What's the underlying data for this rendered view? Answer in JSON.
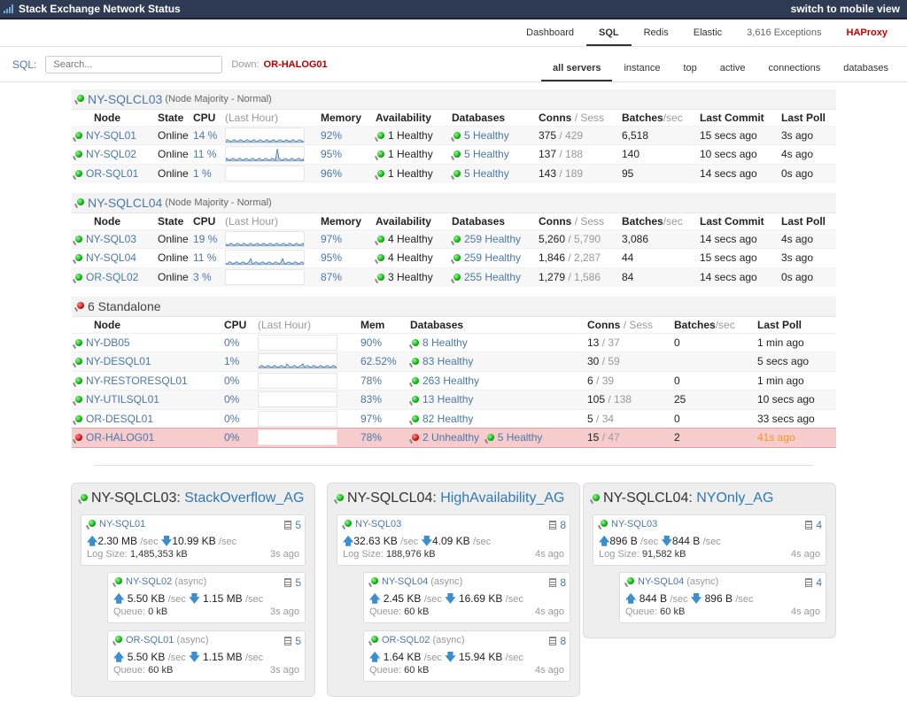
{
  "app": {
    "title": "Stack Exchange Network Status",
    "switch": "switch to mobile view"
  },
  "nav": [
    "Dashboard",
    "SQL",
    "Redis",
    "Elastic",
    "3,616 Exceptions",
    "HAProxy"
  ],
  "sql": {
    "label": "SQL:",
    "placeholder": "Search...",
    "down_label": "Down:",
    "down_value": "OR-HALOG01"
  },
  "tabs": [
    "all servers",
    "instance",
    "top",
    "active",
    "connections",
    "databases"
  ],
  "cluster_headers": [
    "Node",
    "State",
    "CPU",
    "(Last Hour)",
    "Memory",
    "Availability",
    "Databases",
    "Conns",
    "/ Sess",
    "Batches",
    "/sec",
    "Last Commit",
    "Last Poll"
  ],
  "clusters": [
    {
      "name": "NY-SQLCL03",
      "sub": "(Node Majority - Normal)",
      "rows": [
        {
          "node": "NY-SQL01",
          "state": "Online",
          "cpu": "14 %",
          "mem": "92%",
          "avail": "1 Healthy",
          "dbs": "5 Healthy",
          "conns": "375",
          "sess": "/ 429",
          "batches": "6,518",
          "commit": "15 secs ago",
          "poll": "3s ago"
        },
        {
          "node": "NY-SQL02",
          "state": "Online",
          "cpu": "11 %",
          "mem": "95%",
          "avail": "1 Healthy",
          "dbs": "5 Healthy",
          "conns": "137",
          "sess": "/ 188",
          "batches": "140",
          "commit": "10 secs ago",
          "poll": "4s ago"
        },
        {
          "node": "OR-SQL01",
          "state": "Online",
          "cpu": "1 %",
          "mem": "96%",
          "avail": "1 Healthy",
          "dbs": "5 Healthy",
          "conns": "143",
          "sess": "/ 189",
          "batches": "95",
          "commit": "14 secs ago",
          "poll": "0s ago"
        }
      ]
    },
    {
      "name": "NY-SQLCL04",
      "sub": "(Node Majority - Normal)",
      "rows": [
        {
          "node": "NY-SQL03",
          "state": "Online",
          "cpu": "19 %",
          "mem": "97%",
          "avail": "4 Healthy",
          "dbs": "259 Healthy",
          "conns": "5,260",
          "sess": "/ 5,790",
          "batches": "3,086",
          "commit": "14 secs ago",
          "poll": "4s ago"
        },
        {
          "node": "NY-SQL04",
          "state": "Online",
          "cpu": "11 %",
          "mem": "95%",
          "avail": "4 Healthy",
          "dbs": "259 Healthy",
          "conns": "1,846",
          "sess": "/ 2,287",
          "batches": "44",
          "commit": "15 secs ago",
          "poll": "3s ago"
        },
        {
          "node": "OR-SQL02",
          "state": "Online",
          "cpu": "3 %",
          "mem": "87%",
          "avail": "3 Healthy",
          "dbs": "255 Healthy",
          "conns": "1,279",
          "sess": "/ 1,586",
          "batches": "84",
          "commit": "14 secs ago",
          "poll": "0s ago"
        }
      ]
    }
  ],
  "standalone": {
    "title": "6 Standalone",
    "headers": [
      "Node",
      "CPU",
      "(Last Hour)",
      "Mem",
      "Databases",
      "Conns",
      "/ Sess",
      "Batches",
      "/sec",
      "Last Poll"
    ],
    "rows": [
      {
        "node": "NY-DB05",
        "cpu": "0%",
        "mem": "90%",
        "dbs": "8 Healthy",
        "dbs2": "",
        "conns": "13",
        "sess": "/ 37",
        "batches": "0",
        "poll": "1 min ago"
      },
      {
        "node": "NY-DESQL01",
        "cpu": "1%",
        "mem": "62.52%",
        "dbs": "83 Healthy",
        "dbs2": "",
        "conns": "30",
        "sess": "/ 59",
        "batches": "",
        "poll": "5 secs ago"
      },
      {
        "node": "NY-RESTORESQL01",
        "cpu": "0%",
        "mem": "78%",
        "dbs": "263 Healthy",
        "dbs2": "",
        "conns": "6",
        "sess": "/ 39",
        "batches": "0",
        "poll": "1 min ago"
      },
      {
        "node": "NY-UTILSQL01",
        "cpu": "0%",
        "mem": "83%",
        "dbs": "13 Healthy",
        "dbs2": "",
        "conns": "105",
        "sess": "/ 138",
        "batches": "25",
        "poll": "10 secs ago"
      },
      {
        "node": "OR-DESQL01",
        "cpu": "0%",
        "mem": "97%",
        "dbs": "82 Healthy",
        "dbs2": "",
        "conns": "5",
        "sess": "/ 34",
        "batches": "0",
        "poll": "33 secs ago"
      },
      {
        "node": "OR-HALOG01",
        "cpu": "0%",
        "mem": "78%",
        "dbs": "2 Unhealthy",
        "dbs2": "5 Healthy",
        "conns": "15",
        "sess": "/ 47",
        "batches": "2",
        "poll": "41s ago"
      }
    ]
  },
  "ags": [
    {
      "cluster": "NY-SQLCL03:",
      "name": "StackOverflow_AG",
      "primary": {
        "node": "NY-SQL01",
        "count": "5",
        "up": "2.30 MB",
        "down": "10.99 KB",
        "unit": "/sec",
        "loglabel": "Log Size:",
        "log": "1,485,353 kB",
        "ago": "3s ago"
      },
      "secondaries": [
        {
          "node": "NY-SQL02",
          "async": "(async)",
          "count": "5",
          "up": "5.50 KB",
          "down": "1.15 MB",
          "unit": "/sec",
          "qlabel": "Queue:",
          "queue": "0 kB",
          "ago": "3s ago"
        },
        {
          "node": "OR-SQL01",
          "async": "(async)",
          "count": "5",
          "up": "5.50 KB",
          "down": "1.15 MB",
          "unit": "/sec",
          "qlabel": "Queue:",
          "queue": "60 kB",
          "ago": "3s ago"
        }
      ]
    },
    {
      "cluster": "NY-SQLCL04:",
      "name": "HighAvailability_AG",
      "primary": {
        "node": "NY-SQL03",
        "count": "8",
        "up": "32.63 KB",
        "down": "4.09 KB",
        "unit": "/sec",
        "loglabel": "Log Size:",
        "log": "188,976 kB",
        "ago": "4s ago"
      },
      "secondaries": [
        {
          "node": "NY-SQL04",
          "async": "(async)",
          "count": "8",
          "up": "2.45 KB",
          "down": "16.69 KB",
          "unit": "/sec",
          "qlabel": "Queue:",
          "queue": "60 kB",
          "ago": "4s ago"
        },
        {
          "node": "OR-SQL02",
          "async": "(async)",
          "count": "8",
          "up": "1.64 KB",
          "down": "15.94 KB",
          "unit": "/sec",
          "qlabel": "Queue:",
          "queue": "60 kB",
          "ago": "4s ago"
        }
      ]
    },
    {
      "cluster": "NY-SQLCL04:",
      "name": "NYOnly_AG",
      "primary": {
        "node": "NY-SQL03",
        "count": "4",
        "up": "896 B",
        "down": "844 B",
        "unit": "/sec",
        "loglabel": "Log Size:",
        "log": "91,582 kB",
        "ago": "4s ago"
      },
      "secondaries": [
        {
          "node": "NY-SQL04",
          "async": "(async)",
          "count": "4",
          "up": "844 B",
          "down": "896 B",
          "unit": "/sec",
          "qlabel": "Queue:",
          "queue": "60 kB",
          "ago": "4s ago"
        }
      ]
    }
  ],
  "colors": {
    "header_bg": "#2e3b52",
    "link": "#4a78a8",
    "down": "#b00000",
    "warn": "#f19a22",
    "bad_row": "#f6cccc"
  }
}
